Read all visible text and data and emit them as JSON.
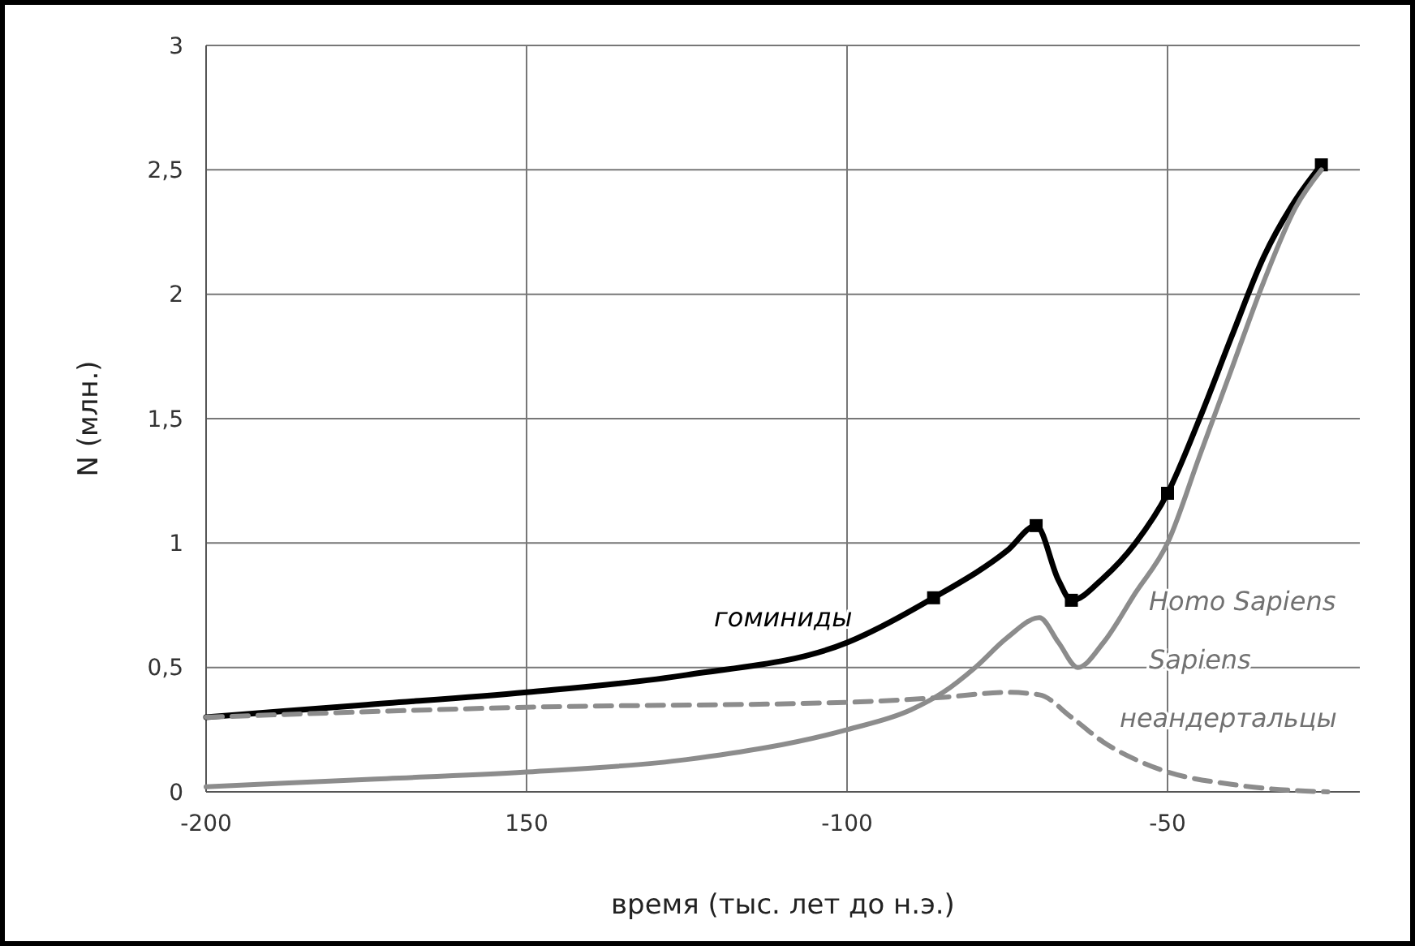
{
  "chart_data": {
    "type": "line",
    "xlabel": "время (тыс. лет до н.э.)",
    "ylabel": "N (млн.)",
    "xlim": [
      -200,
      -20
    ],
    "xticks": [
      -200,
      {
        "value": -150,
        "label": "150"
      },
      -100,
      -50
    ],
    "ylim": [
      0,
      3
    ],
    "yticks": [
      0,
      {
        "value": 0.5,
        "label": "0,5"
      },
      1,
      {
        "value": 1.5,
        "label": "1,5"
      },
      2,
      {
        "value": 2.5,
        "label": "2,5"
      },
      3
    ],
    "grid": true,
    "series": [
      {
        "name": "гоминиды",
        "color": "#000000",
        "line_style": "solid",
        "marker": "none",
        "x": [
          -200,
          -175,
          -150,
          -125,
          -100,
          -86.5,
          -75,
          -70.5,
          -67,
          -65,
          -60,
          -55,
          -50,
          -45,
          -40,
          -35,
          -30,
          -26
        ],
        "values": [
          0.3,
          0.35,
          0.4,
          0.47,
          0.6,
          0.78,
          0.97,
          1.07,
          0.85,
          0.77,
          0.86,
          1.0,
          1.2,
          1.5,
          1.83,
          2.15,
          2.38,
          2.52
        ]
      },
      {
        "type": "scatter",
        "color": "#000000",
        "marker": "square",
        "x": [
          -86.5,
          -70.5,
          -65,
          -50,
          -26
        ],
        "values": [
          0.78,
          1.07,
          0.77,
          1.2,
          2.52
        ]
      },
      {
        "name": "Homo Sapiens Sapiens",
        "color": "#8c8c8c",
        "line_style": "solid",
        "marker": "none",
        "x": [
          -200,
          -175,
          -150,
          -125,
          -100,
          -90,
          -85,
          -80,
          -75,
          -70,
          -67,
          -64,
          -60,
          -55,
          -50,
          -45,
          -40,
          -35,
          -30,
          -26
        ],
        "values": [
          0.02,
          0.05,
          0.08,
          0.13,
          0.25,
          0.33,
          0.4,
          0.5,
          0.62,
          0.7,
          0.6,
          0.5,
          0.6,
          0.8,
          1.0,
          1.35,
          1.7,
          2.05,
          2.35,
          2.5
        ]
      },
      {
        "name": "неандертальцы",
        "color": "#8c8c8c",
        "line_style": "dashed",
        "marker": "none",
        "x": [
          -200,
          -150,
          -100,
          -85,
          -75,
          -70,
          -65,
          -60,
          -55,
          -50,
          -40,
          -30,
          -25
        ],
        "values": [
          0.3,
          0.34,
          0.36,
          0.38,
          0.4,
          0.39,
          0.3,
          0.2,
          0.13,
          0.08,
          0.03,
          0.005,
          0
        ]
      }
    ]
  }
}
